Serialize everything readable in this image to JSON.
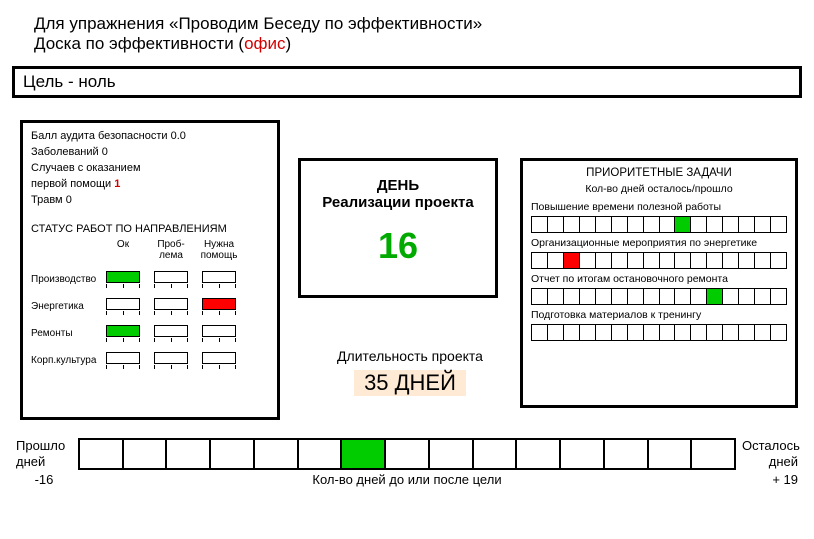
{
  "header": {
    "line1": "Для упражнения «Проводим Беседу по эффективности»",
    "line2_pre": "Доска по эффективности (",
    "line2_red": "офис",
    "line2_post": ")"
  },
  "goal": "Цель - ноль",
  "safety": {
    "metrics": {
      "audit_pre": "Балл аудита безопасности ",
      "audit_val": "0.0",
      "illness_pre": "Заболеваний ",
      "illness_val": "0",
      "firstaid_l1": "Случаев с оказанием",
      "firstaid_pre": "первой помощи ",
      "firstaid_val": "1",
      "injuries_pre": "Травм ",
      "injuries_val": "0"
    },
    "status_header": "СТАТУС РАБОТ ПО НАПРАВЛЕНИЯМ",
    "cols": {
      "ok": "Ок",
      "problem": "Проб-\nлема",
      "help": "Нужна\nпомощь"
    },
    "rows": [
      {
        "label": "Производство",
        "cells": [
          "g",
          "",
          ""
        ]
      },
      {
        "label": "Энергетика",
        "cells": [
          "",
          "",
          "r"
        ]
      },
      {
        "label": "Ремонты",
        "cells": [
          "g",
          "",
          ""
        ]
      },
      {
        "label": "Корп.культура",
        "cells": [
          "",
          "",
          ""
        ]
      }
    ]
  },
  "day": {
    "t1": "ДЕНЬ",
    "t2": "Реализации проекта",
    "value": "16"
  },
  "duration": {
    "label": "Длительность проекта",
    "value": "35 ДНЕЙ"
  },
  "priority": {
    "header": "ПРИОРИТЕТНЫЕ ЗАДАЧИ",
    "sub": "Кол-во дней осталось/прошло",
    "tasks": [
      {
        "label": "Повышение времени полезной работы",
        "cells": [
          "",
          "",
          "",
          "",
          "",
          "",
          "",
          "",
          "",
          "g",
          "",
          "",
          "",
          "",
          "",
          ""
        ]
      },
      {
        "label": "Организационные мероприятия по энергетике",
        "cells": [
          "",
          "",
          "r",
          "",
          "",
          "",
          "",
          "",
          "",
          "",
          "",
          "",
          "",
          "",
          "",
          ""
        ]
      },
      {
        "label": "Отчет по итогам остановочного ремонта",
        "cells": [
          "",
          "",
          "",
          "",
          "",
          "",
          "",
          "",
          "",
          "",
          "",
          "g",
          "",
          "",
          "",
          ""
        ]
      },
      {
        "label": "Подготовка материалов к тренингу",
        "cells": [
          "",
          "",
          "",
          "",
          "",
          "",
          "",
          "",
          "",
          "",
          "",
          "",
          "",
          "",
          "",
          ""
        ]
      }
    ]
  },
  "bottom": {
    "left_label": "Прошло\nдней",
    "left_val": "-16",
    "right_label": "Осталось\nдней",
    "right_val": "+ 19",
    "caption": "Кол-во дней до или после цели",
    "cells": [
      "",
      "",
      "",
      "",
      "",
      "",
      "g",
      "",
      "",
      "",
      "",
      "",
      "",
      "",
      ""
    ]
  },
  "colors": {
    "green": "#00cc00",
    "red": "#ff0000",
    "border": "#000000",
    "highlight": "#ffead6"
  }
}
